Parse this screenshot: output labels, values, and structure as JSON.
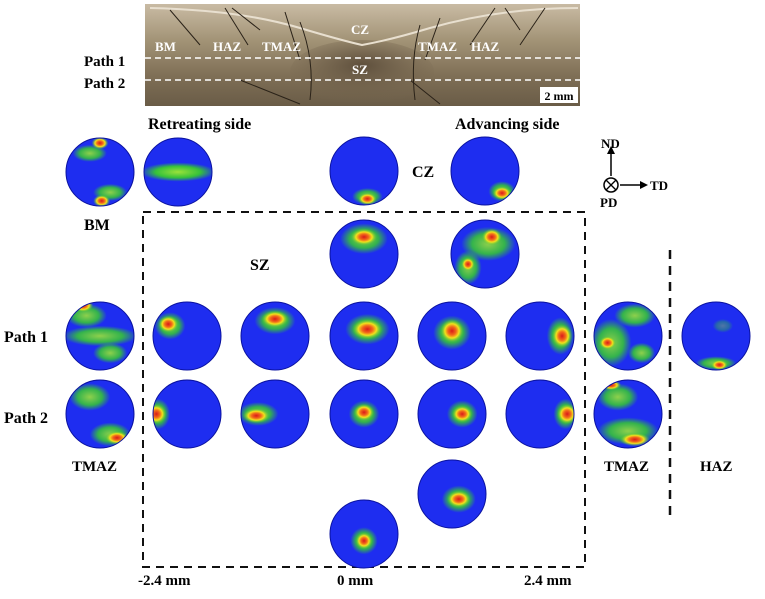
{
  "micrograph": {
    "zone_labels": [
      "BM",
      "HAZ",
      "TMAZ",
      "CZ",
      "SZ",
      "TMAZ",
      "HAZ"
    ],
    "scale_bar": "2 mm",
    "paths": [
      "Path 1",
      "Path 2"
    ]
  },
  "labels": {
    "retreating_side": "Retreating side",
    "advancing_side": "Advancing side",
    "bm": "BM",
    "cz": "CZ",
    "sz": "SZ",
    "path1": "Path 1",
    "path2": "Path 2",
    "tmaz_left": "TMAZ",
    "tmaz_right": "TMAZ",
    "haz": "HAZ"
  },
  "axes": {
    "nd": "ND",
    "td": "TD",
    "pd": "PD"
  },
  "position_ticks": [
    "-2.4 mm",
    "0 mm",
    "2.4 mm"
  ],
  "colors": {
    "pole_background": "#1e2df0",
    "low_intensity": "#36c23a",
    "mid_intensity": "#f2e21c",
    "high_intensity": "#d91a1a",
    "dashed_box": "#111111"
  }
}
